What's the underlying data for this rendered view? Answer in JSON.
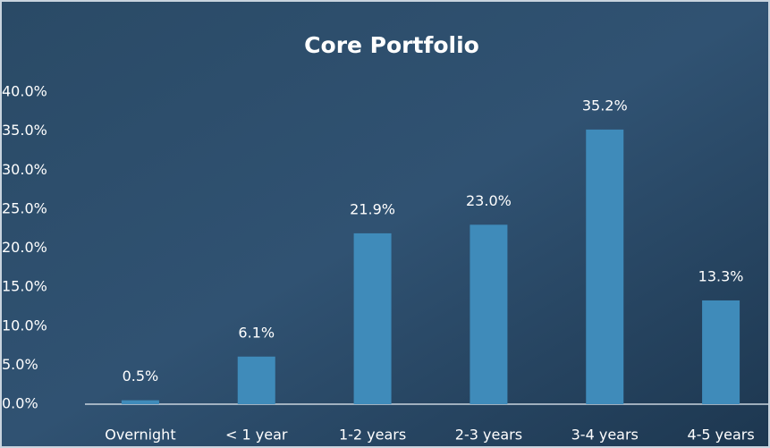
{
  "chart_data": {
    "type": "bar",
    "title": "Core Portfolio",
    "categories": [
      "Overnight",
      "< 1 year",
      "1-2 years",
      "2-3 years",
      "3-4 years",
      "4-5 years"
    ],
    "values": [
      0.5,
      6.1,
      21.9,
      23.0,
      35.2,
      13.3
    ],
    "value_labels": [
      "0.5%",
      "6.1%",
      "21.9%",
      "23.0%",
      "35.2%",
      "13.3%"
    ],
    "color": "#3f8bba",
    "ylim": [
      0,
      40
    ],
    "yticks": [
      {
        "value": 0,
        "label": "0.0%"
      },
      {
        "value": 5,
        "label": "5.0%"
      },
      {
        "value": 10,
        "label": "10.0%"
      },
      {
        "value": 15,
        "label": "15.0%"
      },
      {
        "value": 20,
        "label": "20.0%"
      },
      {
        "value": 25,
        "label": "25.0%"
      },
      {
        "value": 30,
        "label": "30.0%"
      },
      {
        "value": 35,
        "label": "35.0%"
      },
      {
        "value": 40,
        "label": "40.0%"
      }
    ],
    "grid": false
  }
}
